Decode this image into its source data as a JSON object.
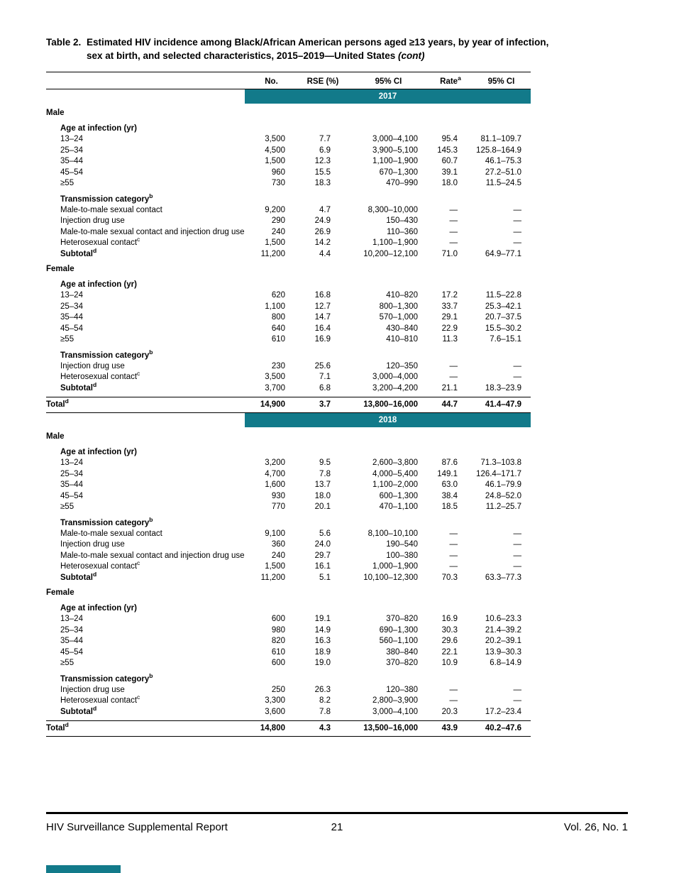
{
  "colors": {
    "teal": "#127a8a",
    "text": "#000000",
    "background": "#ffffff"
  },
  "title": {
    "prefix": "Table 2.",
    "line1": "Estimated HIV incidence among Black/African American persons aged ≥13 years, by year of infection,",
    "line2": "sex at birth, and selected characteristics, 2015–2019—United States",
    "cont": "(cont)"
  },
  "table": {
    "columns": [
      "No.",
      "RSE (%)",
      "95% CI",
      "Rate",
      "95% CI"
    ],
    "rate_superscript": "a",
    "years": [
      {
        "year": "2017",
        "groups": [
          {
            "sex": "Male",
            "blocks": [
              {
                "header": {
                  "label": "Age at infection (yr)",
                  "sup": ""
                },
                "rows": [
                  {
                    "label": "13–24",
                    "sup": "",
                    "cells": [
                      "3,500",
                      "7.7",
                      "3,000–4,100",
                      "95.4",
                      "81.1–109.7"
                    ]
                  },
                  {
                    "label": "25–34",
                    "sup": "",
                    "cells": [
                      "4,500",
                      "6.9",
                      "3,900–5,100",
                      "145.3",
                      "125.8–164.9"
                    ]
                  },
                  {
                    "label": "35–44",
                    "sup": "",
                    "cells": [
                      "1,500",
                      "12.3",
                      "1,100–1,900",
                      "60.7",
                      "46.1–75.3"
                    ]
                  },
                  {
                    "label": "45–54",
                    "sup": "",
                    "cells": [
                      "960",
                      "15.5",
                      "670–1,300",
                      "39.1",
                      "27.2–51.0"
                    ]
                  },
                  {
                    "label": "≥55",
                    "sup": "",
                    "cells": [
                      "730",
                      "18.3",
                      "470–990",
                      "18.0",
                      "11.5–24.5"
                    ]
                  }
                ]
              },
              {
                "header": {
                  "label": "Transmission category",
                  "sup": "b"
                },
                "rows": [
                  {
                    "label": "Male-to-male sexual contact",
                    "sup": "",
                    "cells": [
                      "9,200",
                      "4.7",
                      "8,300–10,000",
                      "—",
                      "—"
                    ]
                  },
                  {
                    "label": "Injection drug use",
                    "sup": "",
                    "cells": [
                      "290",
                      "24.9",
                      "150–430",
                      "—",
                      "—"
                    ]
                  },
                  {
                    "label": "Male-to-male sexual contact and injection drug use",
                    "sup": "",
                    "cells": [
                      "240",
                      "26.9",
                      "110–360",
                      "—",
                      "—"
                    ]
                  },
                  {
                    "label": "Heterosexual contact",
                    "sup": "c",
                    "cells": [
                      "1,500",
                      "14.2",
                      "1,100–1,900",
                      "—",
                      "—"
                    ]
                  },
                  {
                    "label": "Subtotal",
                    "sup": "d",
                    "label_bold": true,
                    "cells": [
                      "11,200",
                      "4.4",
                      "10,200–12,100",
                      "71.0",
                      "64.9–77.1"
                    ]
                  }
                ]
              }
            ]
          },
          {
            "sex": "Female",
            "blocks": [
              {
                "header": {
                  "label": "Age at infection (yr)",
                  "sup": ""
                },
                "rows": [
                  {
                    "label": "13–24",
                    "sup": "",
                    "cells": [
                      "620",
                      "16.8",
                      "410–820",
                      "17.2",
                      "11.5–22.8"
                    ]
                  },
                  {
                    "label": "25–34",
                    "sup": "",
                    "cells": [
                      "1,100",
                      "12.7",
                      "800–1,300",
                      "33.7",
                      "25.3–42.1"
                    ]
                  },
                  {
                    "label": "35–44",
                    "sup": "",
                    "cells": [
                      "800",
                      "14.7",
                      "570–1,000",
                      "29.1",
                      "20.7–37.5"
                    ]
                  },
                  {
                    "label": "45–54",
                    "sup": "",
                    "cells": [
                      "640",
                      "16.4",
                      "430–840",
                      "22.9",
                      "15.5–30.2"
                    ]
                  },
                  {
                    "label": "≥55",
                    "sup": "",
                    "cells": [
                      "610",
                      "16.9",
                      "410–810",
                      "11.3",
                      "7.6–15.1"
                    ]
                  }
                ]
              },
              {
                "header": {
                  "label": "Transmission category",
                  "sup": "b"
                },
                "rows": [
                  {
                    "label": "Injection drug use",
                    "sup": "",
                    "cells": [
                      "230",
                      "25.6",
                      "120–350",
                      "—",
                      "—"
                    ]
                  },
                  {
                    "label": "Heterosexual contact",
                    "sup": "c",
                    "cells": [
                      "3,500",
                      "7.1",
                      "3,000–4,000",
                      "—",
                      "—"
                    ]
                  },
                  {
                    "label": "Subtotal",
                    "sup": "d",
                    "label_bold": true,
                    "cells": [
                      "3,700",
                      "6.8",
                      "3,200–4,200",
                      "21.1",
                      "18.3–23.9"
                    ]
                  }
                ]
              }
            ]
          }
        ],
        "total": {
          "label": "Total",
          "sup": "d",
          "cells": [
            "14,900",
            "3.7",
            "13,800–16,000",
            "44.7",
            "41.4–47.9"
          ]
        }
      },
      {
        "year": "2018",
        "groups": [
          {
            "sex": "Male",
            "blocks": [
              {
                "header": {
                  "label": "Age at infection (yr)",
                  "sup": ""
                },
                "rows": [
                  {
                    "label": "13–24",
                    "sup": "",
                    "cells": [
                      "3,200",
                      "9.5",
                      "2,600–3,800",
                      "87.6",
                      "71.3–103.8"
                    ]
                  },
                  {
                    "label": "25–34",
                    "sup": "",
                    "cells": [
                      "4,700",
                      "7.8",
                      "4,000–5,400",
                      "149.1",
                      "126.4–171.7"
                    ]
                  },
                  {
                    "label": "35–44",
                    "sup": "",
                    "cells": [
                      "1,600",
                      "13.7",
                      "1,100–2,000",
                      "63.0",
                      "46.1–79.9"
                    ]
                  },
                  {
                    "label": "45–54",
                    "sup": "",
                    "cells": [
                      "930",
                      "18.0",
                      "600–1,300",
                      "38.4",
                      "24.8–52.0"
                    ]
                  },
                  {
                    "label": "≥55",
                    "sup": "",
                    "cells": [
                      "770",
                      "20.1",
                      "470–1,100",
                      "18.5",
                      "11.2–25.7"
                    ]
                  }
                ]
              },
              {
                "header": {
                  "label": "Transmission category",
                  "sup": "b"
                },
                "rows": [
                  {
                    "label": "Male-to-male sexual contact",
                    "sup": "",
                    "cells": [
                      "9,100",
                      "5.6",
                      "8,100–10,100",
                      "—",
                      "—"
                    ]
                  },
                  {
                    "label": "Injection drug use",
                    "sup": "",
                    "cells": [
                      "360",
                      "24.0",
                      "190–540",
                      "—",
                      "—"
                    ]
                  },
                  {
                    "label": "Male-to-male sexual contact and injection drug use",
                    "sup": "",
                    "cells": [
                      "240",
                      "29.7",
                      "100–380",
                      "—",
                      "—"
                    ]
                  },
                  {
                    "label": "Heterosexual contact",
                    "sup": "c",
                    "cells": [
                      "1,500",
                      "16.1",
                      "1,000–1,900",
                      "—",
                      "—"
                    ]
                  },
                  {
                    "label": "Subtotal",
                    "sup": "d",
                    "label_bold": true,
                    "cells": [
                      "11,200",
                      "5.1",
                      "10,100–12,300",
                      "70.3",
                      "63.3–77.3"
                    ]
                  }
                ]
              }
            ]
          },
          {
            "sex": "Female",
            "blocks": [
              {
                "header": {
                  "label": "Age at infection (yr)",
                  "sup": ""
                },
                "rows": [
                  {
                    "label": "13–24",
                    "sup": "",
                    "cells": [
                      "600",
                      "19.1",
                      "370–820",
                      "16.9",
                      "10.6–23.3"
                    ]
                  },
                  {
                    "label": "25–34",
                    "sup": "",
                    "cells": [
                      "980",
                      "14.9",
                      "690–1,300",
                      "30.3",
                      "21.4–39.2"
                    ]
                  },
                  {
                    "label": "35–44",
                    "sup": "",
                    "cells": [
                      "820",
                      "16.3",
                      "560–1,100",
                      "29.6",
                      "20.2–39.1"
                    ]
                  },
                  {
                    "label": "45–54",
                    "sup": "",
                    "cells": [
                      "610",
                      "18.9",
                      "380–840",
                      "22.1",
                      "13.9–30.3"
                    ]
                  },
                  {
                    "label": "≥55",
                    "sup": "",
                    "cells": [
                      "600",
                      "19.0",
                      "370–820",
                      "10.9",
                      "6.8–14.9"
                    ]
                  }
                ]
              },
              {
                "header": {
                  "label": "Transmission category",
                  "sup": "b"
                },
                "rows": [
                  {
                    "label": "Injection drug use",
                    "sup": "",
                    "cells": [
                      "250",
                      "26.3",
                      "120–380",
                      "—",
                      "—"
                    ]
                  },
                  {
                    "label": "Heterosexual contact",
                    "sup": "c",
                    "cells": [
                      "3,300",
                      "8.2",
                      "2,800–3,900",
                      "—",
                      "—"
                    ]
                  },
                  {
                    "label": "Subtotal",
                    "sup": "d",
                    "label_bold": true,
                    "cells": [
                      "3,600",
                      "7.8",
                      "3,000–4,100",
                      "20.3",
                      "17.2–23.4"
                    ]
                  }
                ]
              }
            ]
          }
        ],
        "total": {
          "label": "Total",
          "sup": "d",
          "cells": [
            "14,800",
            "4.3",
            "13,500–16,000",
            "43.9",
            "40.2–47.6"
          ]
        }
      }
    ]
  },
  "footer": {
    "left": "HIV Surveillance Supplemental Report",
    "page_number": "21",
    "right": "Vol. 26, No. 1"
  }
}
